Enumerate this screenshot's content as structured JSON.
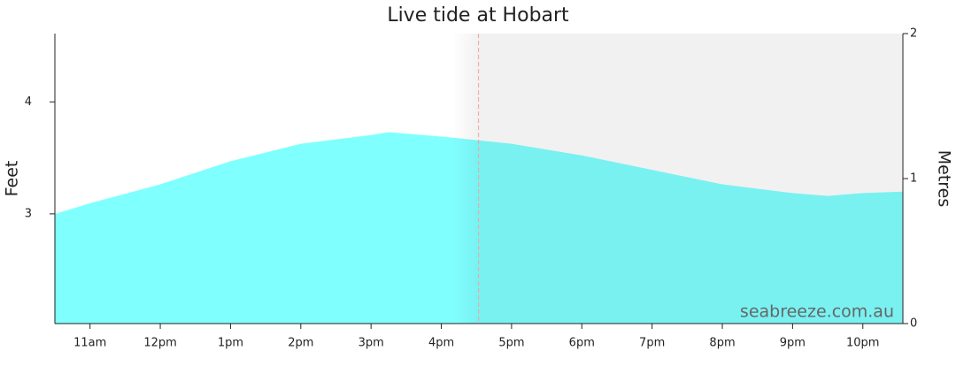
{
  "chart_data": {
    "type": "area",
    "title": "Live tide at Hobart",
    "ylabel": "Feet",
    "y2label": "Metres",
    "watermark": "seabreeze.com.au",
    "xlim": [
      10.5,
      22.57
    ],
    "xticks": [
      {
        "value": 11,
        "label": "11am"
      },
      {
        "value": 12,
        "label": "12pm"
      },
      {
        "value": 13,
        "label": "1pm"
      },
      {
        "value": 14,
        "label": "2pm"
      },
      {
        "value": 15,
        "label": "3pm"
      },
      {
        "value": 16,
        "label": "4pm"
      },
      {
        "value": 17,
        "label": "5pm"
      },
      {
        "value": 18,
        "label": "6pm"
      },
      {
        "value": 19,
        "label": "7pm"
      },
      {
        "value": 20,
        "label": "8pm"
      },
      {
        "value": 21,
        "label": "9pm"
      },
      {
        "value": 22,
        "label": "10pm"
      }
    ],
    "ylim": [
      2.02,
      4.61
    ],
    "yticks": [
      3,
      4
    ],
    "y2lim": [
      0,
      2
    ],
    "y2ticks": [
      0,
      1,
      2
    ],
    "now": 16.53,
    "shade_from": 16.15,
    "series": [
      {
        "color": "#80ffff",
        "axis": "y2",
        "x": [
          10.5,
          11,
          12,
          13,
          14,
          15,
          15.25,
          16,
          17,
          18,
          19,
          20,
          21,
          21.5,
          22,
          22.57
        ],
        "values": [
          0.756,
          0.83,
          0.96,
          1.12,
          1.24,
          1.3,
          1.32,
          1.29,
          1.24,
          1.16,
          1.06,
          0.96,
          0.9,
          0.88,
          0.9,
          0.91
        ]
      }
    ]
  }
}
